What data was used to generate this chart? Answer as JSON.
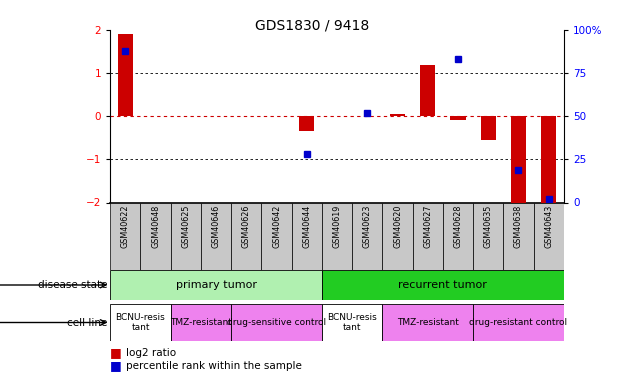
{
  "title": "GDS1830 / 9418",
  "samples": [
    "GSM40622",
    "GSM40648",
    "GSM40625",
    "GSM40646",
    "GSM40626",
    "GSM40642",
    "GSM40644",
    "GSM40619",
    "GSM40623",
    "GSM40620",
    "GSM40627",
    "GSM40628",
    "GSM40635",
    "GSM40638",
    "GSM40643"
  ],
  "log2_ratio": [
    1.9,
    0.0,
    0.0,
    0.0,
    0.0,
    0.0,
    -0.35,
    0.0,
    0.0,
    0.05,
    1.2,
    -0.08,
    -0.55,
    -2.05,
    -2.0
  ],
  "percentile_rank": [
    88,
    null,
    null,
    null,
    null,
    null,
    28,
    null,
    52,
    null,
    null,
    83,
    null,
    19,
    2
  ],
  "ylim": [
    -2,
    2
  ],
  "y2lim": [
    0,
    100
  ],
  "yticks_left": [
    -2,
    -1,
    0,
    1,
    2
  ],
  "yticks_right": [
    0,
    25,
    50,
    75,
    100
  ],
  "disease_state": [
    {
      "label": "primary tumor",
      "start": 0,
      "end": 7,
      "color": "#b0f0b0"
    },
    {
      "label": "recurrent tumor",
      "start": 7,
      "end": 15,
      "color": "#22cc22"
    }
  ],
  "cell_line": [
    {
      "label": "BCNU-resis\ntant",
      "start": 0,
      "end": 2,
      "color": "#ffffff"
    },
    {
      "label": "TMZ-resistant",
      "start": 2,
      "end": 4,
      "color": "#ee82ee"
    },
    {
      "label": "drug-sensitive control",
      "start": 4,
      "end": 7,
      "color": "#ee82ee"
    },
    {
      "label": "BCNU-resis\ntant",
      "start": 7,
      "end": 9,
      "color": "#ffffff"
    },
    {
      "label": "TMZ-resistant",
      "start": 9,
      "end": 12,
      "color": "#ee82ee"
    },
    {
      "label": "drug-resistant control",
      "start": 12,
      "end": 15,
      "color": "#ee82ee"
    }
  ],
  "bar_color": "#cc0000",
  "dot_color": "#0000cc",
  "label_bg": "#c8c8c8",
  "fig_width": 6.3,
  "fig_height": 3.75,
  "fig_dpi": 100
}
